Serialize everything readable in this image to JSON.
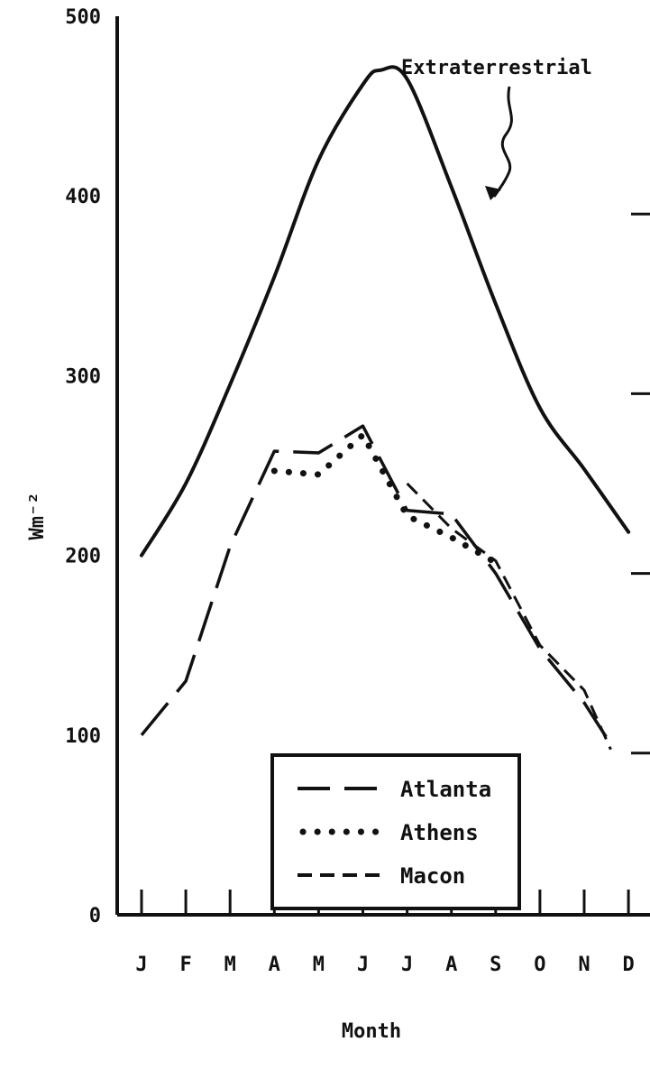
{
  "chart_data": {
    "type": "line",
    "xlabel": "Month",
    "ylabel": "Wm⁻²",
    "categories": [
      "J",
      "F",
      "M",
      "A",
      "M",
      "J",
      "J",
      "A",
      "S",
      "O",
      "N",
      "D"
    ],
    "ylim": [
      0,
      500
    ],
    "yticks": [
      0,
      100,
      200,
      300,
      400,
      500
    ],
    "grid": false,
    "legend_position": "lower-center",
    "annotation": "Extraterrestrial",
    "series": [
      {
        "name": "Extraterrestrial",
        "style": "solid",
        "x": [
          0,
          1,
          2,
          3,
          4,
          5,
          5.4,
          6,
          7,
          8,
          9,
          10,
          11
        ],
        "values": [
          200,
          240,
          295,
          355,
          420,
          462,
          470,
          465,
          405,
          340,
          282,
          248,
          213
        ]
      },
      {
        "name": "Atlanta",
        "style": "long-dash",
        "x": [
          0,
          1,
          2,
          3,
          4,
          5,
          6,
          7,
          8,
          9,
          10,
          10.6
        ],
        "values": [
          100,
          130,
          205,
          258,
          257,
          272,
          225,
          223,
          190,
          148,
          118,
          95
        ]
      },
      {
        "name": "Athens",
        "style": "dotted",
        "x": [
          3,
          4,
          5,
          6,
          7,
          8
        ],
        "values": [
          247,
          245,
          267,
          222,
          210,
          196
        ]
      },
      {
        "name": "Macon",
        "style": "short-dash",
        "x": [
          6,
          7,
          8,
          9,
          10,
          10.6
        ],
        "values": [
          240,
          215,
          197,
          150,
          125,
          92
        ]
      }
    ]
  }
}
